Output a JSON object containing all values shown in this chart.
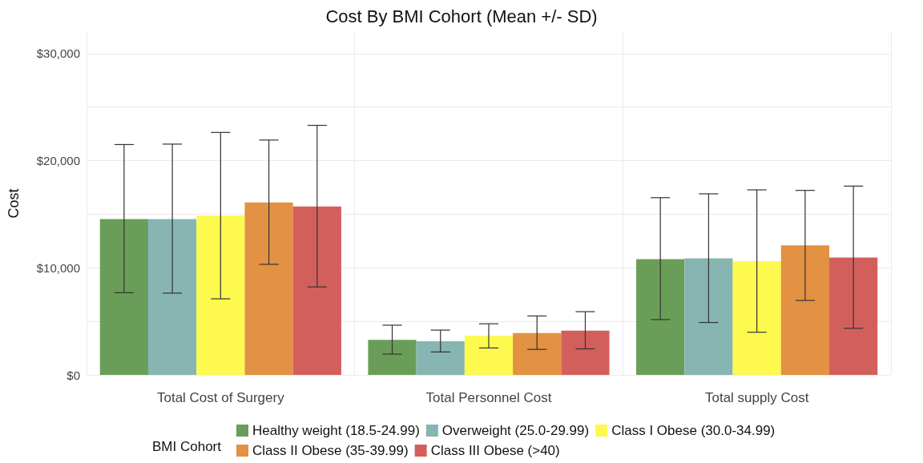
{
  "chart_data": {
    "type": "bar",
    "title": "Cost By BMI Cohort (Mean +/- SD)",
    "ylabel": "Cost",
    "legend_title": "BMI Cohort",
    "categories": [
      "Total Cost of Surgery",
      "Total Personnel Cost",
      "Total supply Cost"
    ],
    "series": [
      {
        "name": "Healthy weight (18.5-24.99)",
        "color": "#6a9e58",
        "values": [
          14550,
          3270,
          10810
        ],
        "errors": [
          [
            7670,
            21500
          ],
          [
            1940,
            4640
          ],
          [
            5160,
            16540
          ]
        ]
      },
      {
        "name": "Overweight (25.0-29.99)",
        "color": "#86b5b2",
        "values": [
          14550,
          3140,
          10880
        ],
        "errors": [
          [
            7630,
            21540
          ],
          [
            2140,
            4180
          ],
          [
            4890,
            16900
          ]
        ]
      },
      {
        "name": "Class I Obese (30.0-34.99)",
        "color": "#fdf94f",
        "values": [
          14860,
          3640,
          10610
        ],
        "errors": [
          [
            7100,
            22630
          ],
          [
            2510,
            4770
          ],
          [
            3980,
            17270
          ]
        ]
      },
      {
        "name": "Class II Obese (35-39.99)",
        "color": "#e39143",
        "values": [
          16090,
          3910,
          12090
        ],
        "errors": [
          [
            10320,
            21920
          ],
          [
            2380,
            5500
          ],
          [
            6950,
            17220
          ]
        ]
      },
      {
        "name": "Class III Obese (>40)",
        "color": "#d35f5c",
        "values": [
          15720,
          4130,
          10960
        ],
        "errors": [
          [
            8210,
            23290
          ],
          [
            2430,
            5900
          ],
          [
            4350,
            17620
          ]
        ]
      }
    ],
    "ylim": [
      0,
      32000
    ],
    "yticks": [
      {
        "value": 0,
        "label": "$0"
      },
      {
        "value": 5000,
        "label": null
      },
      {
        "value": 10000,
        "label": "$10,000"
      },
      {
        "value": 15000,
        "label": null
      },
      {
        "value": 20000,
        "label": "$20,000"
      },
      {
        "value": 25000,
        "label": null
      },
      {
        "value": 30000,
        "label": "$30,000"
      }
    ],
    "grid": true,
    "legend": "bottom"
  }
}
